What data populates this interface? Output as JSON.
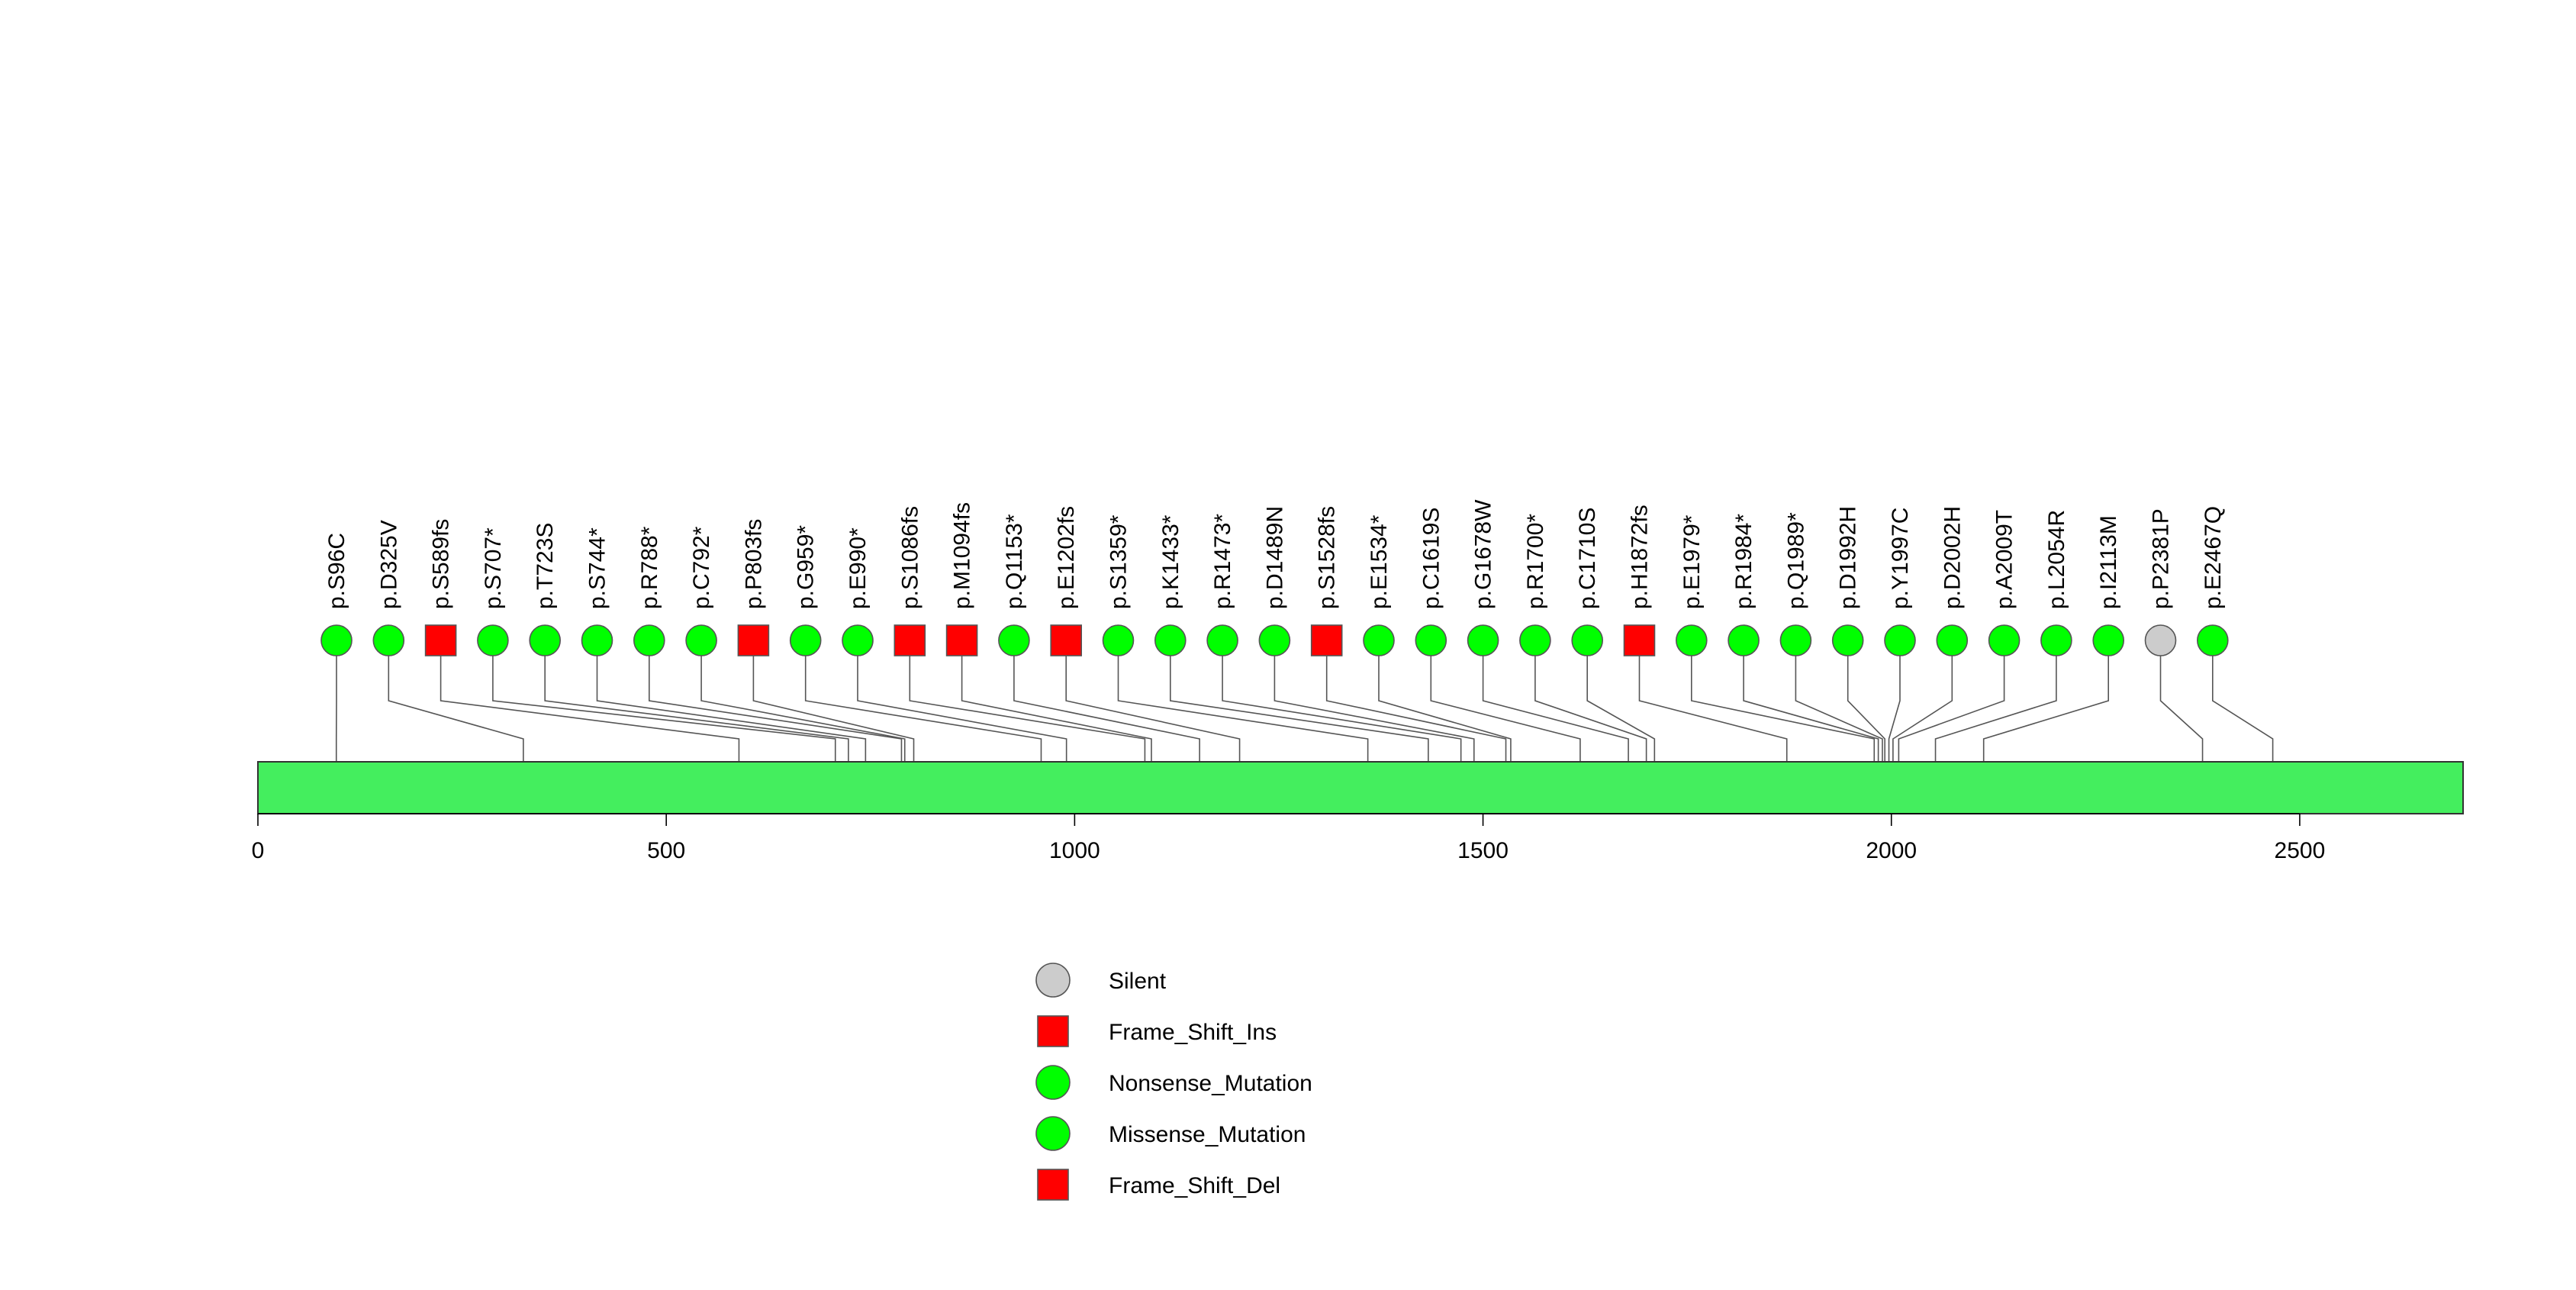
{
  "chart_data": {
    "type": "lollipop",
    "protein_length": 2700,
    "xlim": [
      0,
      2700
    ],
    "x_ticks": [
      0,
      500,
      1000,
      1500,
      2000,
      2500
    ],
    "colors": {
      "domain": "#44ee5e",
      "missense": "#00ff00",
      "nonsense": "#00ff00",
      "frameshift": "#ff0000",
      "silent": "#cccccc",
      "line": "#555555"
    },
    "mutations": [
      {
        "label": "p.S96C",
        "position": 96,
        "type": "Missense_Mutation"
      },
      {
        "label": "p.D325V",
        "position": 325,
        "type": "Missense_Mutation"
      },
      {
        "label": "p.S589fs",
        "position": 589,
        "type": "Frame_Shift_Del"
      },
      {
        "label": "p.S707*",
        "position": 707,
        "type": "Nonsense_Mutation"
      },
      {
        "label": "p.T723S",
        "position": 723,
        "type": "Missense_Mutation"
      },
      {
        "label": "p.S744*",
        "position": 744,
        "type": "Nonsense_Mutation"
      },
      {
        "label": "p.R788*",
        "position": 788,
        "type": "Nonsense_Mutation"
      },
      {
        "label": "p.C792*",
        "position": 792,
        "type": "Nonsense_Mutation"
      },
      {
        "label": "p.P803fs",
        "position": 803,
        "type": "Frame_Shift_Ins"
      },
      {
        "label": "p.G959*",
        "position": 959,
        "type": "Nonsense_Mutation"
      },
      {
        "label": "p.E990*",
        "position": 990,
        "type": "Nonsense_Mutation"
      },
      {
        "label": "p.S1086fs",
        "position": 1086,
        "type": "Frame_Shift_Del"
      },
      {
        "label": "p.M1094fs",
        "position": 1094,
        "type": "Frame_Shift_Ins"
      },
      {
        "label": "p.Q1153*",
        "position": 1153,
        "type": "Nonsense_Mutation"
      },
      {
        "label": "p.E1202fs",
        "position": 1202,
        "type": "Frame_Shift_Del"
      },
      {
        "label": "p.S1359*",
        "position": 1359,
        "type": "Nonsense_Mutation"
      },
      {
        "label": "p.K1433*",
        "position": 1433,
        "type": "Nonsense_Mutation"
      },
      {
        "label": "p.R1473*",
        "position": 1473,
        "type": "Nonsense_Mutation"
      },
      {
        "label": "p.D1489N",
        "position": 1489,
        "type": "Missense_Mutation"
      },
      {
        "label": "p.S1528fs",
        "position": 1528,
        "type": "Frame_Shift_Del"
      },
      {
        "label": "p.E1534*",
        "position": 1534,
        "type": "Nonsense_Mutation"
      },
      {
        "label": "p.C1619S",
        "position": 1619,
        "type": "Missense_Mutation"
      },
      {
        "label": "p.G1678W",
        "position": 1678,
        "type": "Missense_Mutation"
      },
      {
        "label": "p.R1700*",
        "position": 1700,
        "type": "Nonsense_Mutation"
      },
      {
        "label": "p.C1710S",
        "position": 1710,
        "type": "Missense_Mutation"
      },
      {
        "label": "p.H1872fs",
        "position": 1872,
        "type": "Frame_Shift_Del"
      },
      {
        "label": "p.E1979*",
        "position": 1979,
        "type": "Nonsense_Mutation"
      },
      {
        "label": "p.R1984*",
        "position": 1984,
        "type": "Nonsense_Mutation"
      },
      {
        "label": "p.Q1989*",
        "position": 1989,
        "type": "Nonsense_Mutation"
      },
      {
        "label": "p.D1992H",
        "position": 1992,
        "type": "Missense_Mutation"
      },
      {
        "label": "p.Y1997C",
        "position": 1997,
        "type": "Missense_Mutation"
      },
      {
        "label": "p.D2002H",
        "position": 2002,
        "type": "Missense_Mutation"
      },
      {
        "label": "p.A2009T",
        "position": 2009,
        "type": "Missense_Mutation"
      },
      {
        "label": "p.L2054R",
        "position": 2054,
        "type": "Missense_Mutation"
      },
      {
        "label": "p.I2113M",
        "position": 2113,
        "type": "Missense_Mutation"
      },
      {
        "label": "p.P2381P",
        "position": 2381,
        "type": "Silent"
      },
      {
        "label": "p.E2467Q",
        "position": 2467,
        "type": "Missense_Mutation"
      }
    ],
    "legend": [
      {
        "label": "Silent",
        "shape": "circle",
        "color": "#cccccc"
      },
      {
        "label": "Frame_Shift_Ins",
        "shape": "square",
        "color": "#ff0000"
      },
      {
        "label": "Nonsense_Mutation",
        "shape": "circle",
        "color": "#00ff00"
      },
      {
        "label": "Missense_Mutation",
        "shape": "circle",
        "color": "#00ff00"
      },
      {
        "label": "Frame_Shift_Del",
        "shape": "square",
        "color": "#ff0000"
      }
    ]
  }
}
